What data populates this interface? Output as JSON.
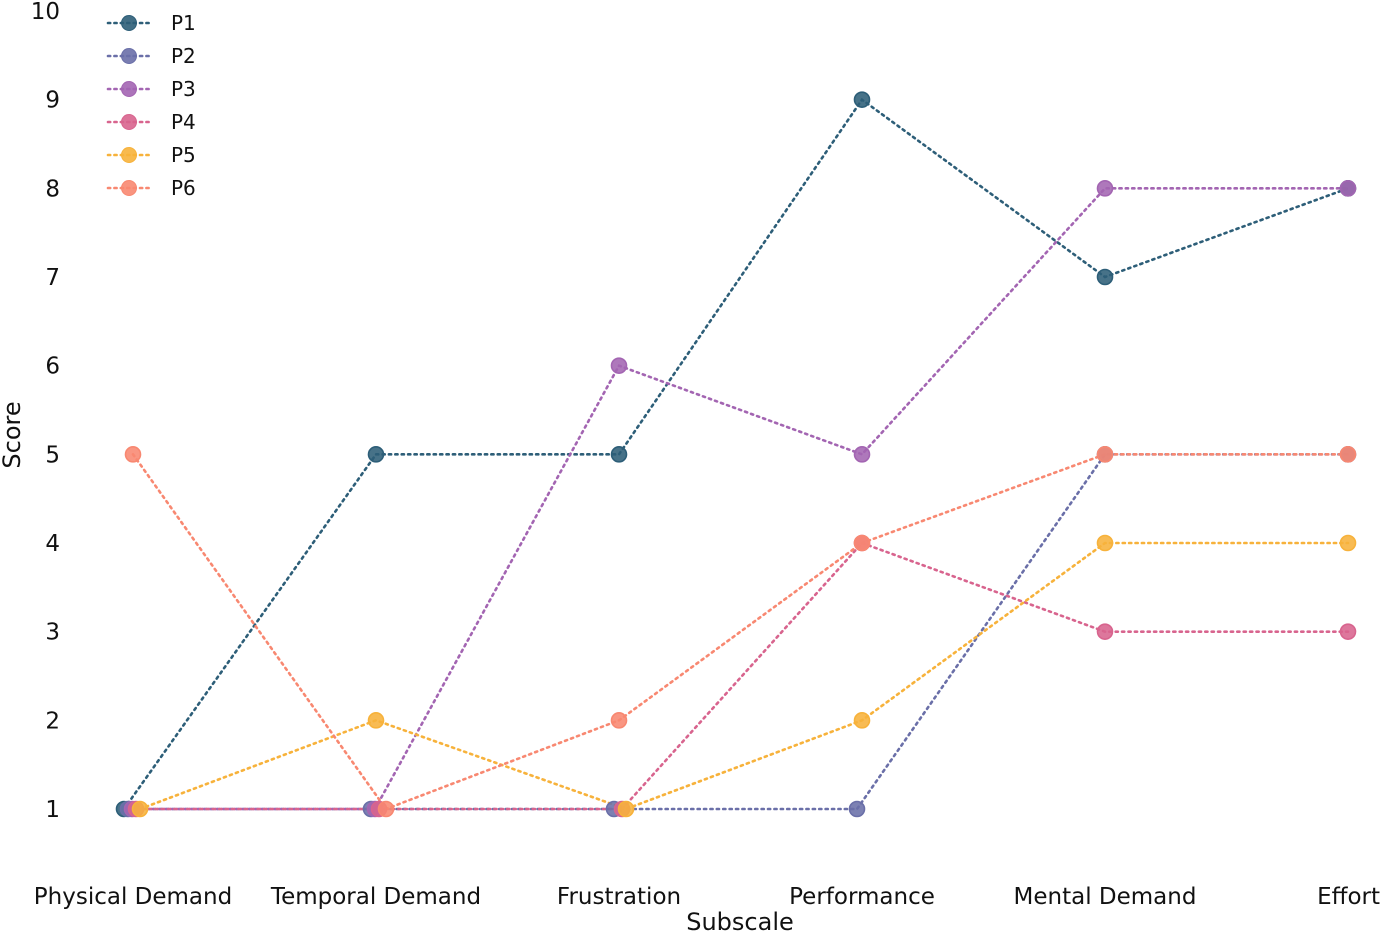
{
  "chart_data": {
    "type": "line",
    "xlabel": "Subscale",
    "ylabel": "Score",
    "categories": [
      "Physical Demand",
      "Temporal Demand",
      "Frustration",
      "Performance",
      "Mental Demand",
      "Effort"
    ],
    "y_ticks": [
      1,
      2,
      3,
      4,
      5,
      6,
      7,
      8,
      9,
      10
    ],
    "ylim": [
      1,
      10
    ],
    "grid": false,
    "line_style": "dotted",
    "legend_position": "top-left",
    "series": [
      {
        "name": "P1",
        "color": "#2d5e78",
        "values": [
          1,
          5,
          5,
          9,
          7,
          8
        ]
      },
      {
        "name": "P2",
        "color": "#6a6fa8",
        "values": [
          1,
          1,
          1,
          1,
          5,
          5
        ]
      },
      {
        "name": "P3",
        "color": "#a365b2",
        "values": [
          1,
          1,
          6,
          5,
          8,
          8
        ]
      },
      {
        "name": "P4",
        "color": "#d8648e",
        "values": [
          1,
          1,
          1,
          4,
          3,
          3
        ]
      },
      {
        "name": "P5",
        "color": "#f7b23b",
        "values": [
          1,
          2,
          1,
          2,
          4,
          4
        ]
      },
      {
        "name": "P6",
        "color": "#f88871",
        "values": [
          5,
          1,
          2,
          4,
          5,
          5
        ]
      }
    ]
  }
}
